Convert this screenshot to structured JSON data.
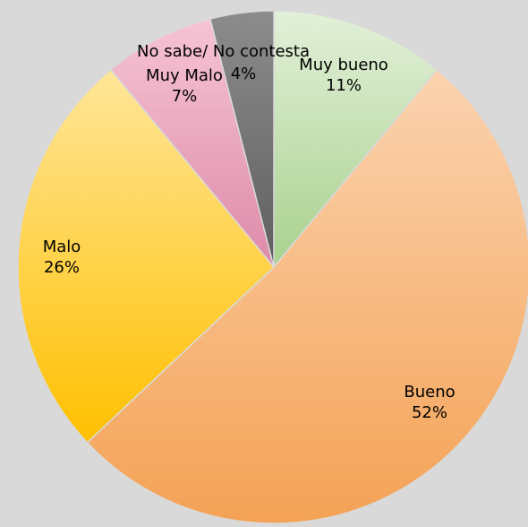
{
  "chart_data": {
    "type": "pie",
    "title": "",
    "categories": [
      "Muy bueno",
      "Bueno",
      "Malo",
      "Muy Malo",
      "No sabe/ No contesta"
    ],
    "values": [
      11,
      52,
      26,
      7,
      4
    ],
    "value_labels": [
      "11%",
      "52%",
      "26%",
      "7%",
      "4%"
    ],
    "start": "12 o'clock",
    "direction": "clockwise",
    "legend": "none",
    "data_labels": "category name and percentage",
    "colors": [
      [
        "#e2f0d9",
        "#a9d18e"
      ],
      [
        "#fbd3b0",
        "#f4a255"
      ],
      [
        "#ffe699",
        "#ffc000"
      ],
      [
        "#f6c4d4",
        "#dd8aa8"
      ],
      [
        "#8c8c8c",
        "#5f5f5f"
      ]
    ],
    "background": "#d9d9d9"
  }
}
